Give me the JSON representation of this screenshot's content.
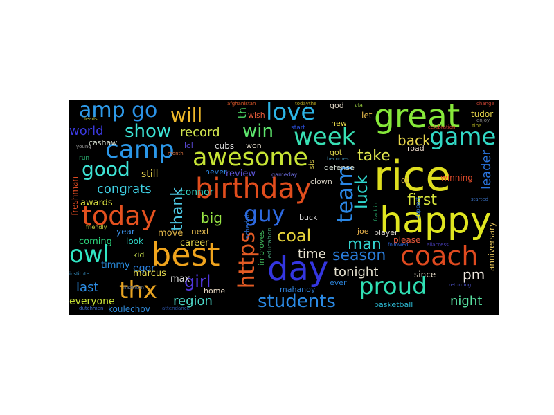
{
  "words": [
    {
      "text": "rice",
      "color": "#dede1f"
    },
    {
      "text": "happy",
      "color": "#e0e620"
    },
    {
      "text": "great",
      "color": "#86e83a"
    },
    {
      "text": "best",
      "color": "#f0a41d"
    },
    {
      "text": "day",
      "color": "#3436e0"
    },
    {
      "text": "birthday",
      "color": "#e14d1d"
    },
    {
      "text": "today",
      "color": "#e4511f"
    },
    {
      "text": "awesome",
      "color": "#c7e435"
    },
    {
      "text": "coach",
      "color": "#e04a1f"
    },
    {
      "text": "love",
      "color": "#2db6e8"
    },
    {
      "text": "week",
      "color": "#38e0b4"
    },
    {
      "text": "camp",
      "color": "#2b97e8"
    },
    {
      "text": "game",
      "color": "#32d9c6"
    },
    {
      "text": "owl",
      "color": "#31e6c4"
    },
    {
      "text": "proud",
      "color": "#30e0b4"
    },
    {
      "text": "thx",
      "color": "#e8a321"
    },
    {
      "text": "team",
      "color": "#2a86e4"
    },
    {
      "text": "guy",
      "color": "#2d69e0"
    },
    {
      "text": "https",
      "color": "#e45b24"
    },
    {
      "text": "amp",
      "color": "#2e9ae9"
    },
    {
      "text": "go",
      "color": "#2b92e6"
    },
    {
      "text": "will",
      "color": "#f0b92a"
    },
    {
      "text": "show",
      "color": "#3ce3d4"
    },
    {
      "text": "win",
      "color": "#5ee56d"
    },
    {
      "text": "good",
      "color": "#3ee2d4"
    },
    {
      "text": "students",
      "color": "#2b8ae4"
    },
    {
      "text": "girl",
      "color": "#5036dd"
    },
    {
      "text": "luck",
      "color": "#2fd6ce"
    },
    {
      "text": "thank",
      "color": "#4ec8e4"
    },
    {
      "text": "season",
      "color": "#2a7ddb"
    },
    {
      "text": "coal",
      "color": "#e6d33a"
    },
    {
      "text": "man",
      "color": "#34d4d0"
    },
    {
      "text": "first",
      "color": "#d7e43a"
    },
    {
      "text": "take",
      "color": "#e1e64f"
    },
    {
      "text": "back",
      "color": "#e6d54a"
    },
    {
      "text": "record",
      "color": "#d2e64f"
    },
    {
      "text": "world",
      "color": "#3b3ae0"
    },
    {
      "text": "congrats",
      "color": "#3fd0e4"
    },
    {
      "text": "big",
      "color": "#99e645"
    },
    {
      "text": "region",
      "color": "#4cd5c6"
    },
    {
      "text": "last",
      "color": "#2d8de4"
    },
    {
      "text": "tonight",
      "color": "#e6e2d0"
    },
    {
      "text": "time",
      "color": "#e8e3d0"
    },
    {
      "text": "pm",
      "color": "#f0e9e0"
    },
    {
      "text": "night",
      "color": "#58e2a2"
    },
    {
      "text": "leader",
      "color": "#2a74dc"
    },
    {
      "text": "th",
      "color": "#4cd866"
    },
    {
      "text": "anniversary",
      "color": "#e6c45a"
    },
    {
      "text": "still",
      "color": "#e7d34f"
    },
    {
      "text": "connor",
      "color": "#33d5c4"
    },
    {
      "text": "awards",
      "color": "#d8dd40"
    },
    {
      "text": "freshman",
      "color": "#e14b22"
    },
    {
      "text": "cashaw",
      "color": "#d6ded0"
    },
    {
      "text": "timmy",
      "color": "#2a8ee0"
    },
    {
      "text": "egor",
      "color": "#2a80e0"
    },
    {
      "text": "marcus",
      "color": "#e3d84f"
    },
    {
      "text": "max",
      "color": "#dadada"
    },
    {
      "text": "everyone",
      "color": "#c7e035"
    },
    {
      "text": "koulechov",
      "color": "#2f88d6"
    },
    {
      "text": "coming",
      "color": "#2dd47c"
    },
    {
      "text": "look",
      "color": "#2fd4c4"
    },
    {
      "text": "year",
      "color": "#3b8ee4"
    },
    {
      "text": "move",
      "color": "#e4b84a"
    },
    {
      "text": "next",
      "color": "#e0b850"
    },
    {
      "text": "career",
      "color": "#e6d84a"
    },
    {
      "text": "kid",
      "color": "#c8e04e"
    },
    {
      "text": "review",
      "color": "#5c55d8"
    },
    {
      "text": "never",
      "color": "#2d86e0"
    },
    {
      "text": "cubs",
      "color": "#dcdcdc"
    },
    {
      "text": "won",
      "color": "#d9d2c2"
    },
    {
      "text": "lol",
      "color": "#5b49d6"
    },
    {
      "text": "defense",
      "color": "#d4e0d4"
    },
    {
      "text": "got",
      "color": "#d7d04a"
    },
    {
      "text": "new",
      "color": "#e8d84a"
    },
    {
      "text": "let",
      "color": "#e4b84a"
    },
    {
      "text": "god",
      "color": "#dad0c0"
    },
    {
      "text": "tudor",
      "color": "#e6d44a"
    },
    {
      "text": "winning",
      "color": "#e34b2a"
    },
    {
      "text": "road",
      "color": "#e3d3c4"
    },
    {
      "text": "lot",
      "color": "#d4b04a"
    },
    {
      "text": "player",
      "color": "#dad7cf"
    },
    {
      "text": "please",
      "color": "#e4573a"
    },
    {
      "text": "since",
      "color": "#e6dcc8"
    },
    {
      "text": "ever",
      "color": "#2a80d4"
    },
    {
      "text": "mahanoy",
      "color": "#2f7fd4"
    },
    {
      "text": "joe",
      "color": "#e6b04a"
    },
    {
      "text": "buck",
      "color": "#d7d7d7"
    },
    {
      "text": "clown",
      "color": "#d7d2c4"
    },
    {
      "text": "improves",
      "color": "#3fb65a"
    },
    {
      "text": "education",
      "color": "#3f8f6a"
    },
    {
      "text": "schedule",
      "color": "#2d73dc"
    },
    {
      "text": "basketball",
      "color": "#2bb6cf"
    },
    {
      "text": "home",
      "color": "#e6d7c2"
    },
    {
      "text": "sis",
      "color": "#d7c84a"
    },
    {
      "text": "gameday",
      "color": "#6a6ad8"
    },
    {
      "text": "wish",
      "color": "#e45b3a"
    },
    {
      "text": "start",
      "color": "#2a4ed8"
    },
    {
      "text": "support",
      "color": "#2f78d0"
    },
    {
      "text": "friendly",
      "color": "#c8d040"
    },
    {
      "text": "dutchmen",
      "color": "#3a66c0"
    },
    {
      "text": "institute",
      "color": "#3a9ad0"
    },
    {
      "text": "afghanistan",
      "color": "#e25a2a"
    },
    {
      "text": "via",
      "color": "#9ad040"
    },
    {
      "text": "celebration",
      "color": "#d64030"
    },
    {
      "text": "enjoy",
      "color": "#8a8a8a"
    },
    {
      "text": "change",
      "color": "#c04030"
    },
    {
      "text": "followed",
      "color": "#2a60d0"
    },
    {
      "text": "started",
      "color": "#3a70c0"
    },
    {
      "text": "returning",
      "color": "#4a50c0"
    },
    {
      "text": "allaccess",
      "color": "#4a40c0"
    },
    {
      "text": "becomes",
      "color": "#3a80a0"
    },
    {
      "text": "hazelton",
      "color": "#5a6a80"
    },
    {
      "text": "attendance",
      "color": "#2a50a0"
    },
    {
      "text": "franklin",
      "color": "#2ab070"
    },
    {
      "text": "young",
      "color": "#9a9a9a"
    },
    {
      "text": "month",
      "color": "#d06a3a"
    },
    {
      "text": "run",
      "color": "#2ab070"
    },
    {
      "text": "todaythe",
      "color": "#b0a020"
    },
    {
      "text": "tina",
      "color": "#b0b020"
    },
    {
      "text": "leads",
      "color": "#c0c040"
    }
  ]
}
